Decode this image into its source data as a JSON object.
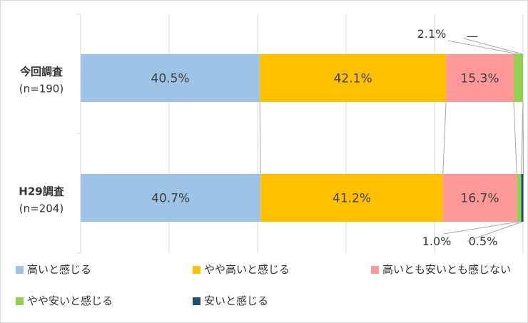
{
  "chart_data": {
    "type": "bar",
    "orientation": "horizontal",
    "stacked": "percent",
    "grid": true,
    "legend_position": "bottom",
    "categories": [
      {
        "name": "今回調査",
        "n": "(n=190)"
      },
      {
        "name": "H29調査",
        "n": "(n=204)"
      }
    ],
    "series": [
      {
        "name": "高いと感じる",
        "color": "#9dc3e6",
        "values": [
          40.5,
          40.7
        ],
        "labels": [
          "40.5%",
          "40.7%"
        ]
      },
      {
        "name": "やや高いと感じる",
        "color": "#ffc000",
        "values": [
          42.1,
          41.2
        ],
        "labels": [
          "42.1%",
          "41.2%"
        ]
      },
      {
        "name": "高いとも安いとも感じない",
        "color": "#ff9999",
        "values": [
          15.3,
          16.7
        ],
        "labels": [
          "15.3%",
          "16.7%"
        ]
      },
      {
        "name": "やや安いと感じる",
        "color": "#92d050",
        "values": [
          2.1,
          1.0
        ],
        "labels": [
          "2.1%",
          "1.0%"
        ]
      },
      {
        "name": "安いと感じる",
        "color": "#1f4e79",
        "values": [
          0,
          0.5
        ],
        "labels": [
          "—",
          "0.5%"
        ]
      }
    ],
    "xlim": [
      0,
      100
    ]
  }
}
